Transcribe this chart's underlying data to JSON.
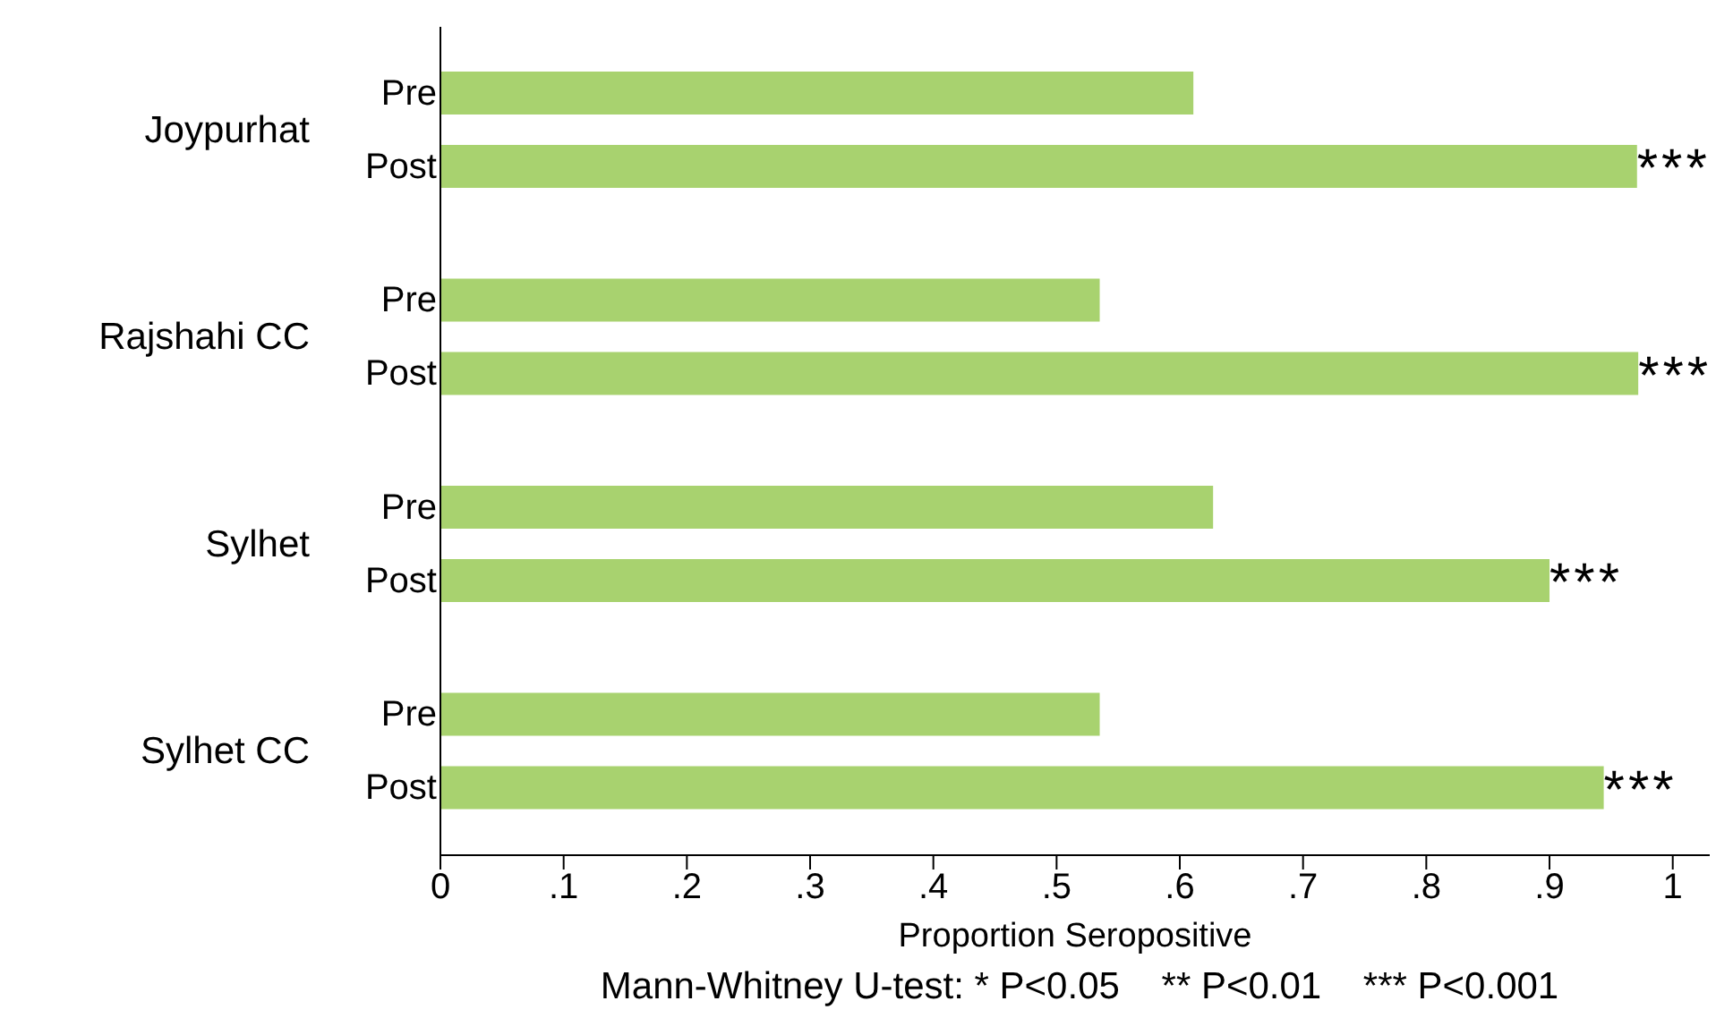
{
  "chart_data": {
    "type": "bar",
    "orientation": "horizontal",
    "xlabel": "Proportion Seropositive",
    "categories": [
      "Joypurhat",
      "Rajshahi CC",
      "Sylhet",
      "Sylhet CC"
    ],
    "series": [
      {
        "name": "Pre",
        "color": "#a8d26f",
        "values": [
          0.611,
          0.535,
          0.627,
          0.535
        ]
      },
      {
        "name": "Post",
        "color": "#a8d26f",
        "values": [
          0.971,
          0.972,
          0.9,
          0.944
        ]
      }
    ],
    "xlim": [
      0,
      1.03
    ],
    "xticks": [
      0,
      {
        "value": 0.1,
        "label": ".1"
      },
      {
        "value": 0.2,
        "label": ".2"
      },
      {
        "value": 0.3,
        "label": ".3"
      },
      {
        "value": 0.4,
        "label": ".4"
      },
      {
        "value": 0.5,
        "label": ".5"
      },
      {
        "value": 0.6,
        "label": ".6"
      },
      {
        "value": 0.7,
        "label": ".7"
      },
      {
        "value": 0.8,
        "label": ".8"
      },
      {
        "value": 0.9,
        "label": ".9"
      },
      1
    ],
    "grid": false,
    "legend": false,
    "annotations": [
      "***",
      "***",
      "***",
      "***",
      "Mann-Whitney U-test: * P<0.05    ** P<0.01    *** P<0.001"
    ]
  }
}
